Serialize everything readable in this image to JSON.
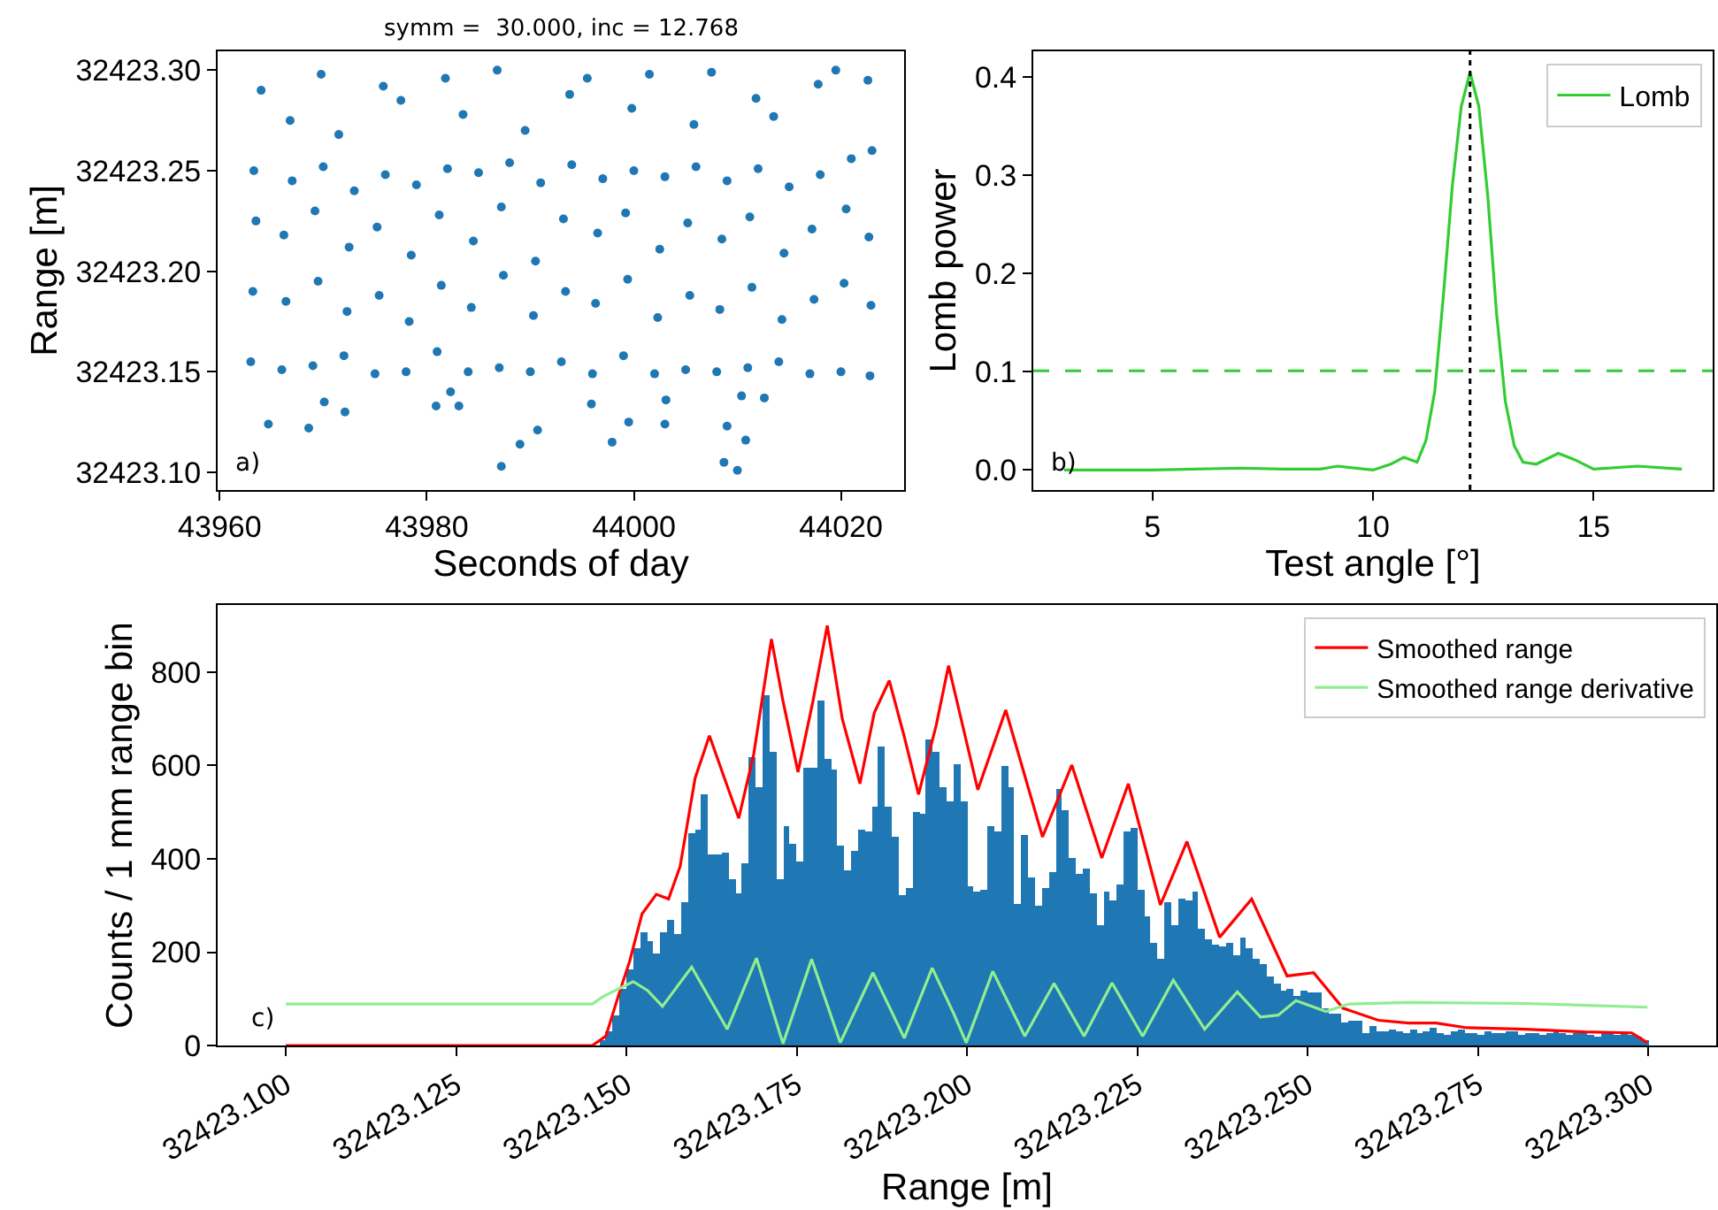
{
  "chart_data": [
    {
      "type": "scatter",
      "title": "symm =  30.000, inc = 12.768",
      "xlabel": "Seconds of day",
      "ylabel": "Range [m]",
      "color": "#1f77b4",
      "marker": "circle",
      "annotations": [
        "a)"
      ],
      "xlim": [
        43959.8,
        44026.1
      ],
      "ylim": [
        32423.0912,
        32423.3094
      ],
      "xticks": [
        43960,
        43980,
        44000,
        44020
      ],
      "yticks": [
        {
          "value": 32423.1,
          "label": "32423.10"
        },
        {
          "value": 32423.15,
          "label": "32423.15"
        },
        {
          "value": 32423.2,
          "label": "32423.20"
        },
        {
          "value": 32423.25,
          "label": "32423.25"
        },
        {
          "value": 32423.3,
          "label": "32423.30"
        }
      ],
      "x": [
        43964.7,
        43968.6,
        43970.1,
        43972.1,
        43980.9,
        43982.3,
        43983.1,
        43987.2,
        43989.0,
        43990.7,
        43995.9,
        43997.9,
        43999.5,
        44003.0,
        44003.1,
        44009.0,
        44008.7,
        44010.0,
        44010.8,
        44010.4,
        44012.6,
        43963.0,
        43963.2,
        43963.5,
        43963.3,
        43964.0,
        43966.0,
        43966.4,
        43966.2,
        43967.0,
        43966.8,
        43969.0,
        43969.5,
        43969.2,
        43970.0,
        43969.8,
        43972.0,
        43972.3,
        43972.5,
        43973.0,
        43971.5,
        43975.0,
        43975.4,
        43975.2,
        43976.0,
        43975.8,
        43978.0,
        43978.3,
        43978.5,
        43979.0,
        43977.5,
        43981.0,
        43981.4,
        43981.2,
        43982.0,
        43981.8,
        43984.0,
        43984.3,
        43984.5,
        43985.0,
        43983.5,
        43987.0,
        43987.4,
        43987.2,
        43988.0,
        43986.8,
        43990.0,
        43990.3,
        43990.5,
        43991.0,
        43989.5,
        43993.0,
        43993.4,
        43993.2,
        43994.0,
        43993.8,
        43996.0,
        43996.3,
        43996.5,
        43997.0,
        43995.5,
        43999.0,
        43999.4,
        43999.2,
        44000.0,
        43999.8,
        44002.0,
        44002.3,
        44002.5,
        44003.0,
        44001.5,
        44005.0,
        44005.4,
        44005.2,
        44006.0,
        44005.8,
        44008.0,
        44008.3,
        44008.5,
        44009.0,
        44007.5,
        44011.0,
        44011.4,
        44011.2,
        44012.0,
        44011.8,
        44014.0,
        44014.3,
        44014.5,
        44015.0,
        44013.5,
        44017.0,
        44017.4,
        44017.2,
        44018.0,
        44017.8,
        44020.0,
        44020.3,
        44020.5,
        44021.0,
        44019.5,
        44022.8,
        44022.9,
        44022.7,
        44023.0,
        44022.6
      ],
      "values": [
        32423.124,
        32423.122,
        32423.135,
        32423.13,
        32423.133,
        32423.14,
        32423.133,
        32423.103,
        32423.114,
        32423.121,
        32423.134,
        32423.115,
        32423.125,
        32423.124,
        32423.136,
        32423.123,
        32423.105,
        32423.101,
        32423.116,
        32423.138,
        32423.137,
        32423.155,
        32423.19,
        32423.225,
        32423.25,
        32423.29,
        32423.151,
        32423.185,
        32423.218,
        32423.245,
        32423.275,
        32423.153,
        32423.195,
        32423.23,
        32423.252,
        32423.298,
        32423.158,
        32423.18,
        32423.212,
        32423.24,
        32423.268,
        32423.149,
        32423.188,
        32423.222,
        32423.248,
        32423.292,
        32423.15,
        32423.175,
        32423.208,
        32423.243,
        32423.285,
        32423.16,
        32423.193,
        32423.228,
        32423.251,
        32423.296,
        32423.15,
        32423.182,
        32423.215,
        32423.249,
        32423.278,
        32423.152,
        32423.198,
        32423.232,
        32423.254,
        32423.3,
        32423.15,
        32423.178,
        32423.205,
        32423.244,
        32423.27,
        32423.155,
        32423.19,
        32423.226,
        32423.253,
        32423.288,
        32423.149,
        32423.184,
        32423.219,
        32423.246,
        32423.296,
        32423.158,
        32423.196,
        32423.229,
        32423.25,
        32423.281,
        32423.149,
        32423.177,
        32423.211,
        32423.247,
        32423.298,
        32423.151,
        32423.188,
        32423.224,
        32423.252,
        32423.273,
        32423.15,
        32423.181,
        32423.216,
        32423.245,
        32423.299,
        32423.152,
        32423.192,
        32423.227,
        32423.251,
        32423.286,
        32423.155,
        32423.176,
        32423.209,
        32423.242,
        32423.277,
        32423.149,
        32423.186,
        32423.221,
        32423.248,
        32423.293,
        32423.15,
        32423.194,
        32423.231,
        32423.256,
        32423.3,
        32423.148,
        32423.183,
        32423.217,
        32423.26,
        32423.295
      ]
    },
    {
      "type": "line",
      "xlabel": "Test angle [°]",
      "ylabel": "Lomb power",
      "legend": "top right",
      "annotations": [
        "b)"
      ],
      "xlim": [
        2.3,
        17.7
      ],
      "ylim": [
        -0.0203,
        0.4263
      ],
      "xticks": [
        5,
        10,
        15
      ],
      "yticks": [
        {
          "value": 0,
          "label": "0.0"
        },
        {
          "value": 0.1,
          "label": "0.1"
        },
        {
          "value": 0.2,
          "label": "0.2"
        },
        {
          "value": 0.3,
          "label": "0.3"
        },
        {
          "value": 0.4,
          "label": "0.4"
        }
      ],
      "ref_lines": [
        {
          "axis": "y",
          "value": 0.101,
          "color": "#32cd32",
          "line_style": "dashed"
        },
        {
          "axis": "x",
          "value": 12.2,
          "color": "#000000",
          "line_style": "dotted"
        }
      ],
      "series": [
        {
          "name": "Lomb",
          "color": "#32cd32",
          "x": [
            3,
            5,
            7,
            8,
            8.8,
            9.2,
            10,
            10.4,
            10.7,
            11.0,
            11.2,
            11.4,
            11.6,
            11.8,
            12.0,
            12.2,
            12.4,
            12.6,
            12.8,
            13.0,
            13.2,
            13.4,
            13.7,
            14.2,
            14.6,
            15.0,
            16.0,
            17.0
          ],
          "values": [
            0,
            0,
            0.002,
            0.001,
            0.001,
            0.004,
            0,
            0.006,
            0.013,
            0.008,
            0.03,
            0.08,
            0.18,
            0.29,
            0.37,
            0.405,
            0.37,
            0.28,
            0.16,
            0.07,
            0.025,
            0.008,
            0.006,
            0.017,
            0.01,
            0.001,
            0.004,
            0.001
          ]
        }
      ]
    },
    {
      "type": "histogram",
      "xlabel": "Range [m]",
      "ylabel": "Counts / 1 mm range bin",
      "color": "#1f77b4",
      "legend": "top right",
      "annotations": [
        "c)"
      ],
      "xlim": [
        32423.09,
        32423.31
      ],
      "ylim": [
        0,
        944
      ],
      "xticks": [
        {
          "value": 32423.1,
          "label": "32423.100"
        },
        {
          "value": 32423.125,
          "label": "32423.125"
        },
        {
          "value": 32423.15,
          "label": "32423.150"
        },
        {
          "value": 32423.175,
          "label": "32423.175"
        },
        {
          "value": 32423.2,
          "label": "32423.200"
        },
        {
          "value": 32423.225,
          "label": "32423.225"
        },
        {
          "value": 32423.25,
          "label": "32423.250"
        },
        {
          "value": 32423.275,
          "label": "32423.275"
        },
        {
          "value": 32423.3,
          "label": "32423.300"
        }
      ],
      "yticks": [
        0,
        200,
        400,
        600,
        800
      ],
      "bins": [
        32423.1,
        32423.101,
        32423.102,
        32423.103,
        32423.104,
        32423.105,
        32423.106,
        32423.107,
        32423.108,
        32423.109,
        32423.11,
        32423.111,
        32423.112,
        32423.113,
        32423.114,
        32423.115,
        32423.116,
        32423.117,
        32423.118,
        32423.119,
        32423.12,
        32423.121,
        32423.122,
        32423.123,
        32423.124,
        32423.125,
        32423.126,
        32423.127,
        32423.128,
        32423.129,
        32423.13,
        32423.131,
        32423.132,
        32423.133,
        32423.134,
        32423.135,
        32423.136,
        32423.137,
        32423.138,
        32423.139,
        32423.14,
        32423.141,
        32423.142,
        32423.143,
        32423.144,
        32423.145,
        32423.146,
        32423.147,
        32423.148,
        32423.149,
        32423.15,
        32423.151,
        32423.152,
        32423.153,
        32423.154,
        32423.155,
        32423.156,
        32423.157,
        32423.158,
        32423.159,
        32423.16,
        32423.161,
        32423.162,
        32423.163,
        32423.164,
        32423.165,
        32423.166,
        32423.167,
        32423.168,
        32423.169,
        32423.17,
        32423.171,
        32423.172,
        32423.173,
        32423.174,
        32423.175,
        32423.176,
        32423.177,
        32423.178,
        32423.179,
        32423.18,
        32423.181,
        32423.182,
        32423.183,
        32423.184,
        32423.185,
        32423.186,
        32423.187,
        32423.188,
        32423.189,
        32423.19,
        32423.191,
        32423.192,
        32423.193,
        32423.194,
        32423.195,
        32423.196,
        32423.197,
        32423.198,
        32423.199,
        32423.2,
        32423.201,
        32423.202,
        32423.203,
        32423.204,
        32423.205,
        32423.206,
        32423.207,
        32423.208,
        32423.209,
        32423.21,
        32423.211,
        32423.212,
        32423.213,
        32423.214,
        32423.215,
        32423.216,
        32423.217,
        32423.218,
        32423.219,
        32423.22,
        32423.221,
        32423.222,
        32423.223,
        32423.224,
        32423.225,
        32423.226,
        32423.227,
        32423.228,
        32423.229,
        32423.23,
        32423.231,
        32423.232,
        32423.233,
        32423.234,
        32423.235,
        32423.236,
        32423.237,
        32423.238,
        32423.239,
        32423.24,
        32423.241,
        32423.242,
        32423.243,
        32423.244,
        32423.245,
        32423.246,
        32423.247,
        32423.248,
        32423.249,
        32423.25,
        32423.251,
        32423.252,
        32423.253,
        32423.254,
        32423.255,
        32423.256,
        32423.257,
        32423.258,
        32423.259,
        32423.26,
        32423.261,
        32423.262,
        32423.263,
        32423.264,
        32423.265,
        32423.266,
        32423.267,
        32423.268,
        32423.269,
        32423.27,
        32423.271,
        32423.272,
        32423.273,
        32423.274,
        32423.275,
        32423.276,
        32423.277,
        32423.278,
        32423.279,
        32423.28,
        32423.281,
        32423.282,
        32423.283,
        32423.284,
        32423.285,
        32423.286,
        32423.287,
        32423.288,
        32423.289,
        32423.29,
        32423.291,
        32423.292,
        32423.293,
        32423.294,
        32423.295,
        32423.296,
        32423.297,
        32423.298,
        32423.299,
        32423.3
      ],
      "values": [
        0,
        0,
        0,
        0,
        0,
        0,
        0,
        0,
        0,
        0,
        0,
        0,
        0,
        0,
        0,
        0,
        0,
        0,
        0,
        0,
        0,
        0,
        0,
        0,
        0,
        0,
        0,
        0,
        0,
        0,
        0,
        0,
        0,
        0,
        0,
        0,
        0,
        0,
        0,
        0,
        0,
        0,
        0,
        0,
        0,
        0,
        10,
        29,
        65,
        123,
        163,
        209,
        243,
        224,
        197,
        243,
        270,
        237,
        308,
        456,
        463,
        539,
        410,
        408,
        414,
        357,
        327,
        391,
        619,
        554,
        749,
        630,
        357,
        471,
        434,
        396,
        596,
        594,
        740,
        614,
        592,
        430,
        376,
        418,
        463,
        459,
        513,
        642,
        513,
        448,
        323,
        339,
        499,
        495,
        657,
        630,
        554,
        523,
        602,
        524,
        340,
        330,
        332,
        471,
        457,
        599,
        553,
        302,
        452,
        359,
        299,
        337,
        372,
        548,
        504,
        400,
        367,
        380,
        327,
        257,
        330,
        310,
        346,
        459,
        468,
        335,
        275,
        219,
        185,
        306,
        259,
        316,
        310,
        328,
        251,
        228,
        218,
        214,
        221,
        195,
        232,
        208,
        186,
        173,
        146,
        133,
        118,
        120,
        105,
        118,
        115,
        114,
        80,
        67,
        70,
        48,
        54,
        52,
        27,
        42,
        32,
        29,
        35,
        30,
        28,
        33,
        25,
        30,
        38,
        27,
        22,
        30,
        35,
        26,
        28,
        24,
        30,
        27,
        25,
        32,
        29,
        22,
        26,
        28,
        24,
        27,
        30,
        25,
        22,
        26,
        28,
        24,
        20,
        25,
        27,
        22,
        25,
        23,
        18,
        12
      ],
      "series": [
        {
          "name": "Smoothed range",
          "color": "#ff0000",
          "type": "line",
          "x": [
            32423.1,
            32423.145,
            32423.147,
            32423.1488,
            32423.1505,
            32423.1523,
            32423.1544,
            32423.1562,
            32423.1579,
            32423.1601,
            32423.1622,
            32423.1644,
            32423.1665,
            32423.1687,
            32423.1713,
            32423.173,
            32423.1752,
            32423.1774,
            32423.1795,
            32423.1817,
            32423.1843,
            32423.1864,
            32423.1886,
            32423.1908,
            32423.1929,
            32423.1955,
            32423.1973,
            32423.2016,
            32423.2057,
            32423.2111,
            32423.2154,
            32423.2198,
            32423.2237,
            32423.2284,
            32423.2323,
            32423.2371,
            32423.2418,
            32423.247,
            32423.2509,
            32423.2552,
            32423.2604,
            32423.2648,
            32423.2689,
            32423.2734,
            32423.282,
            32423.2907,
            32423.2976,
            32423.2999
          ],
          "values": [
            0,
            0,
            20,
            105,
            181,
            282,
            324,
            314,
            384,
            573,
            664,
            573,
            487,
            624,
            871,
            738,
            586,
            738,
            900,
            700,
            561,
            713,
            782,
            662,
            538,
            687,
            814,
            548,
            719,
            447,
            601,
            402,
            561,
            301,
            437,
            232,
            314,
            149,
            156,
            80,
            54,
            48,
            48,
            38,
            35,
            29,
            27,
            6
          ]
        },
        {
          "name": "Smoothed range derivative",
          "color": "#90ee90",
          "type": "line",
          "x": [
            32423.1,
            32423.145,
            32423.1466,
            32423.151,
            32423.1531,
            32423.1553,
            32423.1596,
            32423.1648,
            32423.1691,
            32423.173,
            32423.1772,
            32423.1814,
            32423.1862,
            32423.1908,
            32423.1949,
            32423.1981,
            32423.1999,
            32423.2038,
            32423.2085,
            32423.2128,
            32423.2172,
            32423.2213,
            32423.2258,
            32423.2303,
            32423.2349,
            32423.2397,
            32423.2431,
            32423.2457,
            32423.2483,
            32423.2527,
            32423.2561,
            32423.2648,
            32423.282,
            32423.2999
          ],
          "values": [
            89,
            89,
            105,
            137,
            118,
            84,
            168,
            35,
            187,
            4,
            185,
            6,
            156,
            16,
            166,
            67,
            6,
            159,
            20,
            133,
            20,
            134,
            20,
            140,
            35,
            115,
            61,
            65,
            96,
            73,
            89,
            92,
            90,
            82
          ]
        }
      ]
    }
  ]
}
